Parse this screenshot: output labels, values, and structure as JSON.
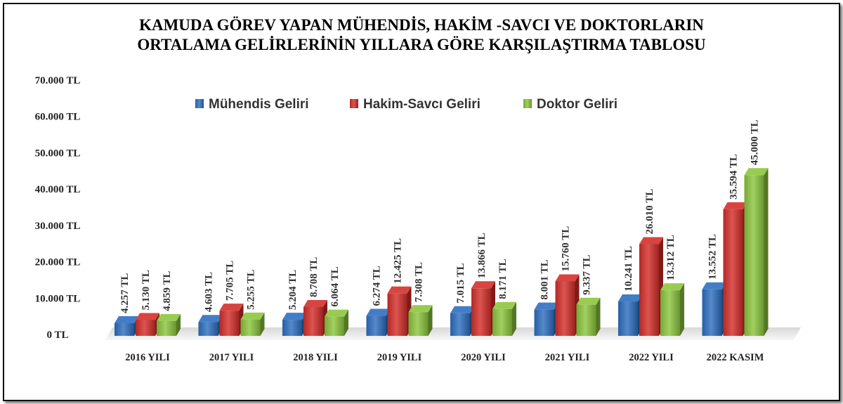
{
  "chart_data": {
    "type": "bar",
    "title_line1": "KAMUDA GÖREV YAPAN MÜHENDİS, HAKİM -SAVCI VE DOKTORLARIN",
    "title_line2": "ORTALAMA GELİRLERİNİN YILLARA GÖRE KARŞILAŞTIRMA TABLOSU",
    "categories": [
      "2016 YILI",
      "2017 YILI",
      "2018 YILI",
      "2019 YILI",
      "2020 YILI",
      "2021 YILI",
      "2022 YILI",
      "2022 KASIM"
    ],
    "series": [
      {
        "name": "Mühendis Geliri",
        "color": "#2e6fc0",
        "values": [
          4257,
          4603,
          5204,
          6274,
          7015,
          8001,
          10241,
          13552
        ],
        "labels": [
          "4.257 TL",
          "4.603 TL",
          "5.204 TL",
          "6.274 TL",
          "7.015 TL",
          "8.001 TL",
          "10.241 TL",
          "13.552 TL"
        ]
      },
      {
        "name": "Hakim-Savcı Geliri",
        "color": "#d42f2a",
        "values": [
          5130,
          7705,
          8708,
          12425,
          13866,
          15760,
          26010,
          35594
        ],
        "labels": [
          "5.130 TL",
          "7.705 TL",
          "8.708 TL",
          "12.425 TL",
          "13.866 TL",
          "15.760 TL",
          "26.010 TL",
          "35.594 TL"
        ]
      },
      {
        "name": "Doktor Geliri",
        "color": "#8cc63e",
        "values": [
          4859,
          5255,
          6064,
          7308,
          8171,
          9337,
          13312,
          45000
        ],
        "labels": [
          "4.859 TL",
          "5.255 TL",
          "6.064 TL",
          "7.308 TL",
          "8.171 TL",
          "9.337 TL",
          "13.312 TL",
          "45.000 TL"
        ]
      }
    ],
    "ylim": [
      0,
      70000
    ],
    "yticks": [
      0,
      10000,
      20000,
      30000,
      40000,
      50000,
      60000,
      70000
    ],
    "ytick_labels": [
      "0 TL",
      "10.000 TL",
      "20.000 TL",
      "30.000 TL",
      "40.000 TL",
      "50.000 TL",
      "60.000 TL",
      "70.000 TL"
    ],
    "grid": false,
    "legend_position": "top-center"
  }
}
